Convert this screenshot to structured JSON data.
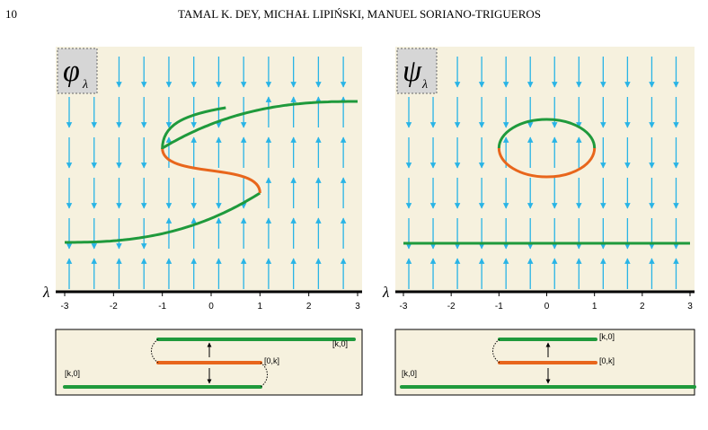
{
  "header": {
    "page_number": "10",
    "running_head": "TAMAL K. DEY, MICHAŁ LIPIŃSKI, MANUEL SORIANO-TRIGUEROS"
  },
  "figure": {
    "panels": [
      {
        "symbol": "φ",
        "subscript": "λ",
        "axis_label": "λ",
        "xlim": [
          -3,
          3
        ],
        "xticks": [
          -3,
          -2,
          -1,
          0,
          1,
          2,
          3
        ],
        "barcode_labels": [
          "[k,0]",
          "[0,k]",
          "[k,0]"
        ]
      },
      {
        "symbol": "ψ",
        "subscript": "λ",
        "axis_label": "λ",
        "xlim": [
          -3,
          3
        ],
        "xticks": [
          -3,
          -2,
          -1,
          0,
          1,
          2,
          3
        ],
        "barcode_labels": [
          "[k,0]",
          "[0,k]",
          "[k,0]"
        ]
      }
    ]
  }
}
